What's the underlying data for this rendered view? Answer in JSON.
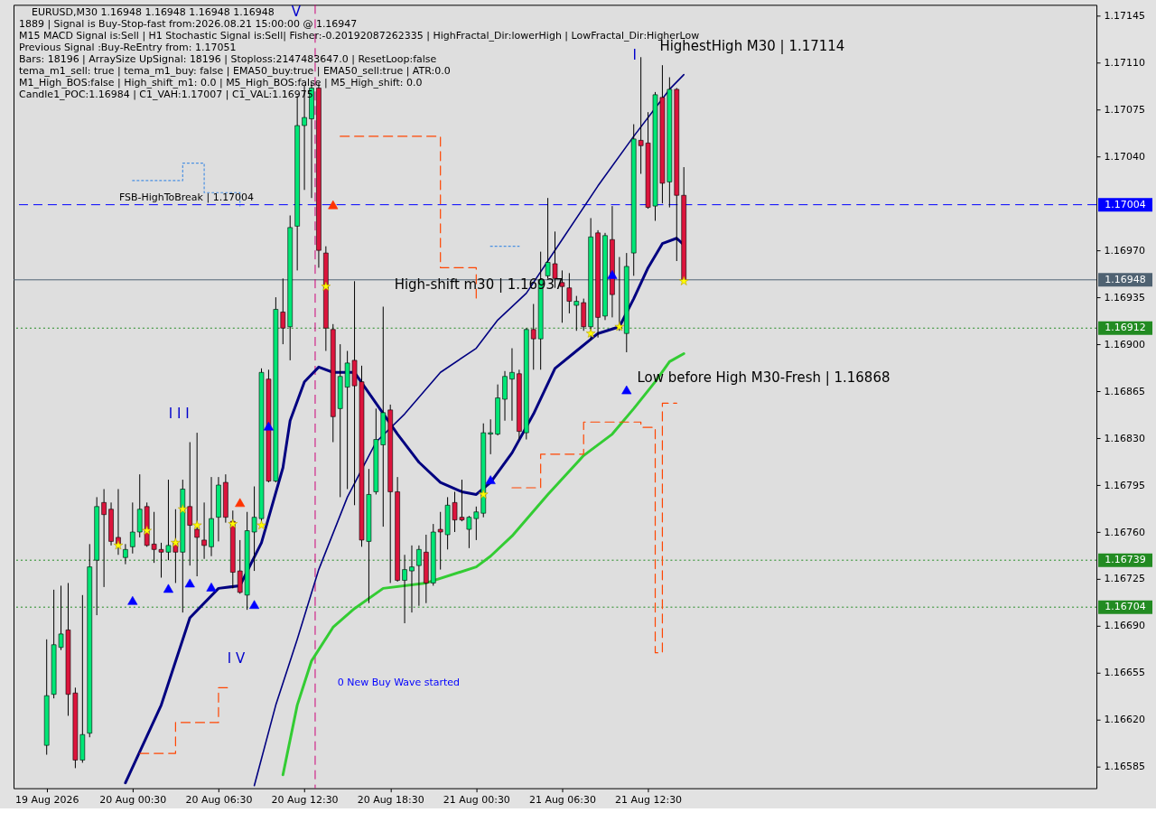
{
  "chart_data": {
    "type": "candlestick",
    "title": "EURUSD,M30  1.16948 1.16948 1.16948 1.16948",
    "annotations": [
      "1889 | Signal is Buy-Stop-fast from:2026.08.21 15:00:00 @ 1.16947",
      "M15 MACD Signal is:Sell | H1 Stochastic Signal is:Sell| Fisher:-0.20192087262335 | HighFractal_Dir:lowerHigh | LowFractal_Dir:HigherLow",
      "Previous Signal :Buy-ReEntry from: 1.17051",
      "Bars: 18196 | ArraySize UpSignal: 18196 | Stoploss:2147483647.0 | ResetLoop:false",
      "tema_m1_sell: true | tema_m1_buy: false | EMA50_buy:true | EMA50_sell:true | ATR:0.0",
      "M1_High_BOS:false | High_shift_m1: 0.0 | M5_High_BOS:false | M5_High_shift: 0.0",
      "Candle1_POC:1.16984 | C1_VAH:1.17007 | C1_VAL:1.16975",
      "FSB-HighToBreak | 1.17004",
      "High-shift m30 | 1.16937",
      "HighestHigh   M30 | 1.17114",
      "Low before High   M30-Fresh | 1.16868",
      "I I I",
      "I V",
      "V",
      "I",
      "0 New Buy Wave started"
    ],
    "x": [
      "2026-08-19T18:30",
      "2026-08-19T19:00",
      "2026-08-19T19:30",
      "2026-08-19T20:00",
      "2026-08-19T20:30",
      "2026-08-19T21:00",
      "2026-08-19T21:30",
      "2026-08-19T22:00",
      "2026-08-19T22:30",
      "2026-08-19T23:00",
      "2026-08-19T23:30",
      "2026-08-20T00:00",
      "2026-08-20T00:30",
      "2026-08-20T01:00",
      "2026-08-20T01:30",
      "2026-08-20T02:00",
      "2026-08-20T02:30",
      "2026-08-20T03:00",
      "2026-08-20T03:30",
      "2026-08-20T04:00",
      "2026-08-20T04:30",
      "2026-08-20T05:00",
      "2026-08-20T05:30",
      "2026-08-20T06:00",
      "2026-08-20T06:30",
      "2026-08-20T07:00",
      "2026-08-20T07:30",
      "2026-08-20T08:00",
      "2026-08-20T08:30",
      "2026-08-20T09:00",
      "2026-08-20T09:30",
      "2026-08-20T10:00",
      "2026-08-20T10:30",
      "2026-08-20T11:00",
      "2026-08-20T11:30",
      "2026-08-20T12:00",
      "2026-08-20T12:30",
      "2026-08-20T13:00",
      "2026-08-20T13:30",
      "2026-08-20T14:00",
      "2026-08-20T14:30",
      "2026-08-20T15:00",
      "2026-08-20T15:30",
      "2026-08-20T16:00",
      "2026-08-20T16:30",
      "2026-08-20T17:00",
      "2026-08-20T17:30",
      "2026-08-20T18:00",
      "2026-08-20T18:30",
      "2026-08-20T19:00",
      "2026-08-20T19:30",
      "2026-08-20T20:00",
      "2026-08-20T20:30",
      "2026-08-20T21:00",
      "2026-08-20T21:30",
      "2026-08-20T22:00",
      "2026-08-20T22:30",
      "2026-08-20T23:00",
      "2026-08-20T23:30",
      "2026-08-21T00:00",
      "2026-08-21T00:30",
      "2026-08-21T01:00",
      "2026-08-21T01:30",
      "2026-08-21T02:00",
      "2026-08-21T02:30",
      "2026-08-21T03:00",
      "2026-08-21T03:30",
      "2026-08-21T04:00",
      "2026-08-21T04:30",
      "2026-08-21T05:00",
      "2026-08-21T05:30",
      "2026-08-21T06:00",
      "2026-08-21T06:30",
      "2026-08-21T07:00",
      "2026-08-21T07:30",
      "2026-08-21T08:00",
      "2026-08-21T08:30",
      "2026-08-21T09:00",
      "2026-08-21T09:30",
      "2026-08-21T10:00",
      "2026-08-21T10:30",
      "2026-08-21T11:00",
      "2026-08-21T11:30",
      "2026-08-21T12:00",
      "2026-08-21T12:30",
      "2026-08-21T13:00",
      "2026-08-21T13:30",
      "2026-08-21T14:00",
      "2026-08-21T14:30",
      "2026-08-21T15:00"
    ],
    "ohlc": [
      [
        1.16601,
        1.1668,
        1.16594,
        1.16638
      ],
      [
        1.16639,
        1.16717,
        1.16636,
        1.16676
      ],
      [
        1.16674,
        1.1672,
        1.16672,
        1.16684
      ],
      [
        1.16687,
        1.16722,
        1.16623,
        1.16639
      ],
      [
        1.1664,
        1.16644,
        1.16584,
        1.1659
      ],
      [
        1.1659,
        1.16713,
        1.16588,
        1.16609
      ],
      [
        1.1661,
        1.16751,
        1.16607,
        1.16734
      ],
      [
        1.16739,
        1.16786,
        1.16698,
        1.16779
      ],
      [
        1.16782,
        1.16792,
        1.16719,
        1.16773
      ],
      [
        1.16777,
        1.16782,
        1.1675,
        1.16753
      ],
      [
        1.16756,
        1.16792,
        1.16743,
        1.1675
      ],
      [
        1.16741,
        1.16751,
        1.16736,
        1.16747
      ],
      [
        1.16749,
        1.16782,
        1.16744,
        1.1676
      ],
      [
        1.1676,
        1.16803,
        1.16756,
        1.16777
      ],
      [
        1.16779,
        1.16782,
        1.16749,
        1.1675
      ],
      [
        1.16751,
        1.16775,
        1.16737,
        1.16747
      ],
      [
        1.16747,
        1.16752,
        1.16726,
        1.16745
      ],
      [
        1.16745,
        1.16799,
        1.16739,
        1.1675
      ],
      [
        1.16753,
        1.16777,
        1.16722,
        1.16745
      ],
      [
        1.16745,
        1.16799,
        1.167,
        1.16792
      ],
      [
        1.16779,
        1.16827,
        1.16735,
        1.16765
      ],
      [
        1.16762,
        1.16834,
        1.16727,
        1.16756
      ],
      [
        1.16754,
        1.16782,
        1.1674,
        1.1675
      ],
      [
        1.16749,
        1.16801,
        1.16742,
        1.1677
      ],
      [
        1.16771,
        1.16801,
        1.16753,
        1.16795
      ],
      [
        1.16797,
        1.16803,
        1.16767,
        1.16771
      ],
      [
        1.16768,
        1.16776,
        1.16718,
        1.1673
      ],
      [
        1.16731,
        1.16754,
        1.16714,
        1.16715
      ],
      [
        1.16713,
        1.16775,
        1.16702,
        1.16761
      ],
      [
        1.1676,
        1.16794,
        1.16731,
        1.16771
      ],
      [
        1.1677,
        1.16882,
        1.16768,
        1.16879
      ],
      [
        1.16874,
        1.16881,
        1.16797,
        1.16798
      ],
      [
        1.16798,
        1.16935,
        1.16797,
        1.16926
      ],
      [
        1.16924,
        1.16949,
        1.169,
        1.16912
      ],
      [
        1.16913,
        1.16996,
        1.16888,
        1.16987
      ],
      [
        1.16988,
        1.17085,
        1.16955,
        1.17063
      ],
      [
        1.17063,
        1.17093,
        1.17015,
        1.17069
      ],
      [
        1.17068,
        1.17095,
        1.17009,
        1.17091
      ],
      [
        1.17091,
        1.17095,
        1.16957,
        1.1697
      ],
      [
        1.16968,
        1.16973,
        1.16895,
        1.16912
      ],
      [
        1.16911,
        1.16915,
        1.16827,
        1.16846
      ],
      [
        1.16852,
        1.169,
        1.16786,
        1.16876
      ],
      [
        1.16868,
        1.16895,
        1.16792,
        1.16886
      ],
      [
        1.16888,
        1.16947,
        1.1678,
        1.16869
      ],
      [
        1.16872,
        1.16884,
        1.16749,
        1.16754
      ],
      [
        1.16753,
        1.16807,
        1.16707,
        1.16788
      ],
      [
        1.1679,
        1.16852,
        1.16788,
        1.16829
      ],
      [
        1.16825,
        1.16928,
        1.16764,
        1.16849
      ],
      [
        1.16851,
        1.16855,
        1.16722,
        1.1679
      ],
      [
        1.1679,
        1.16801,
        1.16723,
        1.16724
      ],
      [
        1.16724,
        1.16743,
        1.16692,
        1.16732
      ],
      [
        1.16731,
        1.1675,
        1.167,
        1.16734
      ],
      [
        1.16735,
        1.1675,
        1.16705,
        1.16747
      ],
      [
        1.16745,
        1.16758,
        1.16707,
        1.16722
      ],
      [
        1.16722,
        1.16766,
        1.1672,
        1.1676
      ],
      [
        1.16762,
        1.16775,
        1.16732,
        1.1676
      ],
      [
        1.16758,
        1.16786,
        1.16747,
        1.1678
      ],
      [
        1.16782,
        1.1679,
        1.1676,
        1.16769
      ],
      [
        1.16771,
        1.16799,
        1.16768,
        1.16769
      ],
      [
        1.16762,
        1.16772,
        1.16748,
        1.16771
      ],
      [
        1.1677,
        1.16779,
        1.16754,
        1.16775
      ],
      [
        1.16774,
        1.16841,
        1.16771,
        1.16834
      ],
      [
        1.16833,
        1.16844,
        1.16818,
        1.16834
      ],
      [
        1.16833,
        1.1687,
        1.16832,
        1.1686
      ],
      [
        1.16859,
        1.1688,
        1.16843,
        1.16876
      ],
      [
        1.16874,
        1.16897,
        1.16843,
        1.16879
      ],
      [
        1.16878,
        1.16881,
        1.16829,
        1.16835
      ],
      [
        1.16834,
        1.16912,
        1.16829,
        1.16911
      ],
      [
        1.16911,
        1.1693,
        1.16881,
        1.16904
      ],
      [
        1.16904,
        1.16969,
        1.16881,
        1.16948
      ],
      [
        1.16951,
        1.17009,
        1.16949,
        1.16961
      ],
      [
        1.1696,
        1.16984,
        1.16942,
        1.16949
      ],
      [
        1.16946,
        1.16955,
        1.16916,
        1.16943
      ],
      [
        1.16942,
        1.16953,
        1.16923,
        1.16932
      ],
      [
        1.16929,
        1.16936,
        1.1691,
        1.16932
      ],
      [
        1.16931,
        1.16934,
        1.1691,
        1.16913
      ],
      [
        1.16913,
        1.16994,
        1.16903,
        1.1698
      ],
      [
        1.16983,
        1.16985,
        1.16905,
        1.1692
      ],
      [
        1.16921,
        1.16983,
        1.16918,
        1.16981
      ],
      [
        1.16978,
        1.17003,
        1.1692,
        1.16937
      ],
      [
        1.16913,
        1.16965,
        1.1691,
        1.16912
      ],
      [
        1.16908,
        1.16968,
        1.16894,
        1.16958
      ],
      [
        1.16968,
        1.17064,
        1.16951,
        1.17053
      ],
      [
        1.17052,
        1.17114,
        1.17027,
        1.17048
      ],
      [
        1.1705,
        1.17073,
        1.17001,
        1.17002
      ],
      [
        1.17003,
        1.17088,
        1.16992,
        1.17086
      ],
      [
        1.17084,
        1.17108,
        1.17005,
        1.1702
      ],
      [
        1.17021,
        1.17099,
        1.17002,
        1.1709
      ],
      [
        1.1709,
        1.17091,
        1.16962,
        1.17011
      ],
      [
        1.17011,
        1.17032,
        1.16947,
        1.16948
      ]
    ],
    "colors": [
      "#00e676",
      "#00e676",
      "#00e676",
      "#dc143c",
      "#dc143c",
      "#00e676",
      "#00e676",
      "#00e676",
      "#dc143c",
      "#dc143c",
      "#dc143c",
      "#00e676",
      "#00e676",
      "#00e676",
      "#dc143c",
      "#dc143c",
      "#dc143c",
      "#00e676",
      "#dc143c",
      "#00e676",
      "#dc143c",
      "#dc143c",
      "#dc143c",
      "#00e676",
      "#00e676",
      "#dc143c",
      "#dc143c",
      "#dc143c",
      "#00e676",
      "#00e676",
      "#00e676",
      "#dc143c",
      "#00e676",
      "#dc143c",
      "#00e676",
      "#00e676",
      "#00e676",
      "#00e676",
      "#dc143c",
      "#dc143c",
      "#dc143c",
      "#00e676",
      "#00e676",
      "#dc143c",
      "#dc143c",
      "#00e676",
      "#00e676",
      "#00e676",
      "#dc143c",
      "#dc143c",
      "#00e676",
      "#00e676",
      "#00e676",
      "#dc143c",
      "#00e676",
      "#dc143c",
      "#00e676",
      "#dc143c",
      "#dc143c",
      "#00e676",
      "#00e676",
      "#00e676",
      "#00e676",
      "#00e676",
      "#00e676",
      "#00e676",
      "#dc143c",
      "#00e676",
      "#dc143c",
      "#00e676",
      "#00e676",
      "#dc143c",
      "#dc143c",
      "#dc143c",
      "#00e676",
      "#dc143c",
      "#00e676",
      "#dc143c",
      "#00e676",
      "#dc143c",
      "#dc143c",
      "#00e676",
      "#00e676",
      "#dc143c",
      "#dc143c",
      "#00e676",
      "#dc143c",
      "#00e676",
      "#dc143c",
      "#dc143c"
    ],
    "series": [
      {
        "type": "line",
        "color": "#000080",
        "x": [
          "2026-08-20T00:00",
          "2026-08-20T02:30",
          "2026-08-20T04:30",
          "2026-08-20T06:30",
          "2026-08-20T08:00",
          "2026-08-20T09:30",
          "2026-08-20T11:00",
          "2026-08-20T11:30",
          "2026-08-20T12:30",
          "2026-08-20T13:30",
          "2026-08-20T14:30",
          "2026-08-20T16:00",
          "2026-08-20T17:30",
          "2026-08-20T19:00",
          "2026-08-20T20:30",
          "2026-08-20T22:00",
          "2026-08-20T23:30",
          "2026-08-21T00:30",
          "2026-08-21T01:30",
          "2026-08-21T03:00",
          "2026-08-21T04:30",
          "2026-08-21T06:00",
          "2026-08-21T07:30",
          "2026-08-21T09:00",
          "2026-08-21T10:30",
          "2026-08-21T11:30",
          "2026-08-21T12:30",
          "2026-08-21T13:30",
          "2026-08-21T14:30",
          "2026-08-21T15:00"
        ],
        "values": [
          1.16573,
          1.16631,
          1.16696,
          1.16718,
          1.1672,
          1.16752,
          1.16808,
          1.16843,
          1.16872,
          1.16883,
          1.16879,
          1.16879,
          1.16856,
          1.16833,
          1.16812,
          1.16797,
          1.1679,
          1.16788,
          1.16797,
          1.16819,
          1.16848,
          1.16882,
          1.16895,
          1.16908,
          1.16913,
          1.16934,
          1.16957,
          1.16975,
          1.16979,
          1.16974
        ]
      },
      {
        "type": "line",
        "color": "#000080",
        "x": [
          "2026-08-20T09:00",
          "2026-08-20T10:30",
          "2026-08-20T12:00",
          "2026-08-20T13:30",
          "2026-08-20T15:30",
          "2026-08-20T17:30",
          "2026-08-20T19:30",
          "2026-08-20T22:00",
          "2026-08-21T00:30",
          "2026-08-21T02:00",
          "2026-08-21T04:00",
          "2026-08-21T06:30",
          "2026-08-21T09:00",
          "2026-08-21T11:30",
          "2026-08-21T14:00",
          "2026-08-21T15:00"
        ],
        "values": [
          1.16571,
          1.16631,
          1.1668,
          1.16732,
          1.16786,
          1.16827,
          1.16848,
          1.16879,
          1.16897,
          1.16918,
          1.16938,
          1.16978,
          1.17018,
          1.17055,
          1.1709,
          1.17101
        ]
      },
      {
        "type": "line",
        "color": "#33cc33",
        "x": [
          "2026-08-20T11:00",
          "2026-08-20T12:00",
          "2026-08-20T13:00",
          "2026-08-20T14:30",
          "2026-08-20T16:00",
          "2026-08-20T18:00",
          "2026-08-20T21:00",
          "2026-08-21T00:30",
          "2026-08-21T01:30",
          "2026-08-21T03:00",
          "2026-08-21T05:30",
          "2026-08-21T08:00",
          "2026-08-21T10:00",
          "2026-08-21T11:30",
          "2026-08-21T13:00",
          "2026-08-21T14:00",
          "2026-08-21T15:00"
        ],
        "values": [
          1.16579,
          1.16631,
          1.16664,
          1.16689,
          1.16703,
          1.16718,
          1.16722,
          1.16734,
          1.16742,
          1.16757,
          1.16788,
          1.16817,
          1.16833,
          1.16852,
          1.16872,
          1.16887,
          1.16893
        ]
      },
      {
        "type": "step",
        "color": "#ff4500",
        "line_style": "dashed",
        "x": [
          "2026-08-20T01:00",
          "2026-08-20T03:30",
          "2026-08-20T06:30",
          "2026-08-20T07:30",
          "2026-08-20T08:00",
          "2026-08-20T15:00",
          "2026-08-20T18:30",
          "2026-08-20T22:00",
          "2026-08-21T00:30",
          "2026-08-21T01:30",
          "2026-08-21T03:00",
          "2026-08-21T04:30",
          "2026-08-21T05:00",
          "2026-08-21T07:30",
          "2026-08-21T08:00",
          "2026-08-21T11:00",
          "2026-08-21T12:00",
          "2026-08-21T12:30",
          "2026-08-21T13:00",
          "2026-08-21T13:30",
          "2026-08-21T14:30"
        ],
        "values": [
          1.16595,
          1.16618,
          1.16644,
          1.16644,
          null,
          1.17055,
          1.17055,
          1.16957,
          1.16931,
          null,
          1.16793,
          1.16793,
          1.16818,
          1.16818,
          1.16842,
          1.16842,
          1.16838,
          1.16838,
          1.1667,
          1.16856,
          1.16856
        ]
      },
      {
        "type": "step",
        "color": "#4a90e2",
        "line_style": "dotted",
        "x": [
          "2026-08-20T00:30",
          "2026-08-20T04:00",
          "2026-08-20T05:30",
          "2026-08-20T08:00",
          "2026-08-20T08:30",
          "2026-08-21T01:30",
          "2026-08-21T03:30"
        ],
        "values": [
          1.17022,
          1.17035,
          1.17013,
          1.17003,
          null,
          1.16973,
          1.16973
        ]
      },
      {
        "type": "scatter",
        "color": "#ffff00",
        "marker": "star",
        "x": [
          "2026-08-19T23:30",
          "2026-08-20T01:30",
          "2026-08-20T03:30",
          "2026-08-20T04:00",
          "2026-08-20T05:00",
          "2026-08-20T07:30",
          "2026-08-20T09:30",
          "2026-08-20T14:00",
          "2026-08-21T01:00",
          "2026-08-21T08:30",
          "2026-08-21T10:30",
          "2026-08-21T15:00"
        ],
        "values": [
          1.1675,
          1.16761,
          1.16752,
          1.16777,
          1.16765,
          1.16766,
          1.16765,
          1.16943,
          1.16788,
          1.16908,
          1.16913,
          1.16947
        ]
      },
      {
        "type": "scatter",
        "color": "#0000ff",
        "marker": "triangle",
        "x": [
          "2026-08-20T00:30",
          "2026-08-20T03:00",
          "2026-08-20T04:30",
          "2026-08-20T06:00",
          "2026-08-20T09:00",
          "2026-08-20T10:00",
          "2026-08-21T01:30",
          "2026-08-21T10:00",
          "2026-08-21T11:00"
        ],
        "values": [
          1.16709,
          1.16718,
          1.16722,
          1.16719,
          1.16706,
          1.16839,
          1.16799,
          1.16952,
          1.16866
        ]
      },
      {
        "type": "scatter",
        "color": "#ff3300",
        "marker": "triangle",
        "x": [
          "2026-08-20T08:00",
          "2026-08-20T14:30"
        ],
        "values": [
          1.16782,
          1.17004
        ]
      }
    ],
    "ref_lines": [
      {
        "axis": "y",
        "value": 1.17004,
        "label": "1.17004",
        "color": "#0000ff",
        "line_style": "dashed"
      },
      {
        "axis": "y",
        "value": 1.16948,
        "label": "1.16948",
        "color": "#4f6272",
        "line_style": "solid"
      },
      {
        "axis": "y",
        "value": 1.16912,
        "label": "1.16912",
        "color": "#228b22",
        "line_style": "dotted"
      },
      {
        "axis": "y",
        "value": 1.16739,
        "label": "1.16739",
        "color": "#228b22",
        "line_style": "dotted"
      },
      {
        "axis": "y",
        "value": 1.16704,
        "label": "1.16704",
        "color": "#228b22",
        "line_style": "dotted"
      },
      {
        "axis": "x",
        "value": "2026-08-20T13:15",
        "color": "#cc0077",
        "line_style": "dashed"
      }
    ],
    "xlim": [
      "2026-08-19T16:30",
      "2026-08-22T19:30"
    ],
    "xticks": [
      {
        "value": "2026-08-19T18:30",
        "label": "19 Aug 2026"
      },
      {
        "value": "2026-08-20T00:30",
        "label": "20 Aug 00:30"
      },
      {
        "value": "2026-08-20T06:30",
        "label": "20 Aug 06:30"
      },
      {
        "value": "2026-08-20T12:30",
        "label": "20 Aug 12:30"
      },
      {
        "value": "2026-08-20T18:30",
        "label": "20 Aug 18:30"
      },
      {
        "value": "2026-08-21T00:30",
        "label": "21 Aug 00:30"
      },
      {
        "value": "2026-08-21T06:30",
        "label": "21 Aug 06:30"
      },
      {
        "value": "2026-08-21T12:30",
        "label": "21 Aug 12:30"
      }
    ],
    "ylim": [
      1.16569,
      1.17153
    ],
    "yticks": [
      {
        "value": 1.17145,
        "label": "1.17145"
      },
      {
        "value": 1.1711,
        "label": "1.17110"
      },
      {
        "value": 1.17075,
        "label": "1.17075"
      },
      {
        "value": 1.1704,
        "label": "1.17040"
      },
      {
        "value": 1.1697,
        "label": "1.16970"
      },
      {
        "value": 1.16935,
        "label": "1.16935"
      },
      {
        "value": 1.169,
        "label": "1.16900"
      },
      {
        "value": 1.16865,
        "label": "1.16865"
      },
      {
        "value": 1.1683,
        "label": "1.16830"
      },
      {
        "value": 1.16795,
        "label": "1.16795"
      },
      {
        "value": 1.1676,
        "label": "1.16760"
      },
      {
        "value": 1.16725,
        "label": "1.16725"
      },
      {
        "value": 1.1669,
        "label": "1.16690"
      },
      {
        "value": 1.16655,
        "label": "1.16655"
      },
      {
        "value": 1.1662,
        "label": "1.16620"
      },
      {
        "value": 1.16585,
        "label": "1.16585"
      }
    ],
    "grid": false
  }
}
